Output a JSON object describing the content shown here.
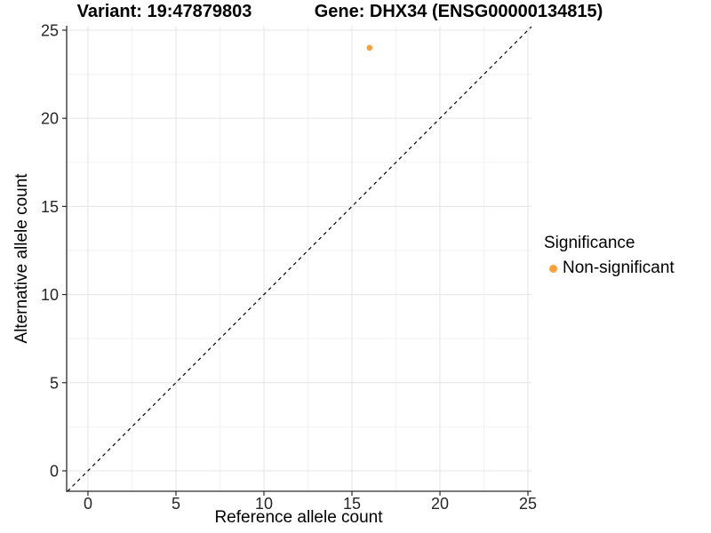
{
  "titles": {
    "variant": "Variant: 19:47879803",
    "gene": "Gene: DHX34 (ENSG00000134815)"
  },
  "chart_data": {
    "type": "scatter",
    "xlabel": "Reference allele count",
    "ylabel": "Alternative allele count",
    "x_ticks": [
      0,
      5,
      10,
      15,
      20,
      25
    ],
    "y_ticks": [
      0,
      5,
      10,
      15,
      20,
      25
    ],
    "xlim": [
      -1.21,
      25.2
    ],
    "ylim": [
      -1.16,
      25.25
    ],
    "minor_grid_positions": [
      2.5,
      7.5,
      12.5,
      17.5,
      22.5
    ],
    "grid": true,
    "series": [
      {
        "name": "Non-significant",
        "color": "#F9A03C",
        "points": [
          {
            "x": 16,
            "y": 24
          }
        ]
      }
    ],
    "reference_line": {
      "equation": "y = x",
      "style": "dashed",
      "color": "#000000"
    },
    "legend": {
      "title": "Significance",
      "position": "right",
      "entries": [
        {
          "label": "Non-significant",
          "color": "#F9A03C",
          "marker": "circle"
        }
      ]
    }
  },
  "colors": {
    "point_orange": "#F9A03C",
    "grid_major": "#E4E4E4",
    "grid_minor": "#F2F2F2",
    "axis_line": "#2B2B2B",
    "tick_text": "#262626",
    "background": "#FFFFFF"
  }
}
